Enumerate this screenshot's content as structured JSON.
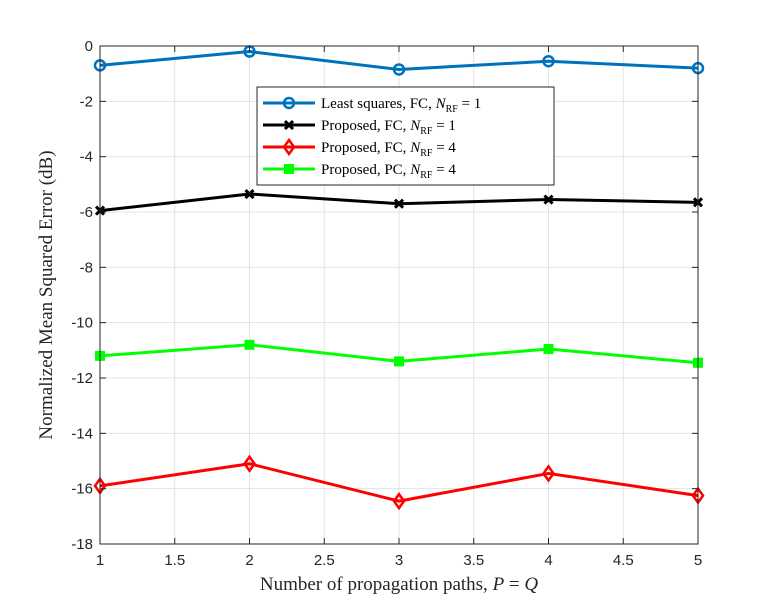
{
  "chart_data": {
    "type": "line",
    "title": "",
    "xlabel": "Number of propagation paths, P = Q",
    "xlabel_prefix": "Number of propagation paths, ",
    "xlabel_var1": "P",
    "xlabel_eq": " = ",
    "xlabel_var2": "Q",
    "ylabel": "Normalized Mean Squared Error (dB)",
    "xlim": [
      1,
      5
    ],
    "ylim": [
      -18,
      0
    ],
    "xticks": [
      1,
      1.5,
      2,
      2.5,
      3,
      3.5,
      4,
      4.5,
      5
    ],
    "xtick_labels": [
      "1",
      "1.5",
      "2",
      "2.5",
      "3",
      "3.5",
      "4",
      "4.5",
      "5"
    ],
    "yticks": [
      0,
      -2,
      -4,
      -6,
      -8,
      -10,
      -12,
      -14,
      -16,
      -18
    ],
    "ytick_labels": [
      "0",
      "-2",
      "-4",
      "-6",
      "-8",
      "-10",
      "-12",
      "-14",
      "-16",
      "-18"
    ],
    "grid": true,
    "legend_position": "top-center",
    "x": [
      1,
      2,
      3,
      4,
      5
    ],
    "series": [
      {
        "name": "Least squares, FC, N_RF = 1",
        "label_main": "Least squares, FC, ",
        "label_var": "N",
        "label_sub": "RF",
        "label_eq": " = 1",
        "color": "#0072BD",
        "marker": "circle",
        "values": [
          -0.7,
          -0.2,
          -0.85,
          -0.55,
          -0.8
        ]
      },
      {
        "name": "Proposed, FC, N_RF = 1",
        "label_main": "Proposed, FC, ",
        "label_var": "N",
        "label_sub": "RF",
        "label_eq": " = 1",
        "color": "#000000",
        "marker": "x",
        "values": [
          -5.95,
          -5.35,
          -5.7,
          -5.55,
          -5.65
        ]
      },
      {
        "name": "Proposed, FC, N_RF = 4",
        "label_main": "Proposed, FC, ",
        "label_var": "N",
        "label_sub": "RF",
        "label_eq": " = 4",
        "color": "#FF0000",
        "marker": "diamond",
        "values": [
          -15.9,
          -15.1,
          -16.45,
          -15.45,
          -16.25
        ]
      },
      {
        "name": "Proposed, PC, N_RF = 4",
        "label_main": "Proposed, PC, ",
        "label_var": "N",
        "label_sub": "RF",
        "label_eq": " = 4",
        "color": "#00FF00",
        "marker": "square",
        "values": [
          -11.2,
          -10.8,
          -11.4,
          -10.95,
          -11.45
        ]
      }
    ]
  }
}
